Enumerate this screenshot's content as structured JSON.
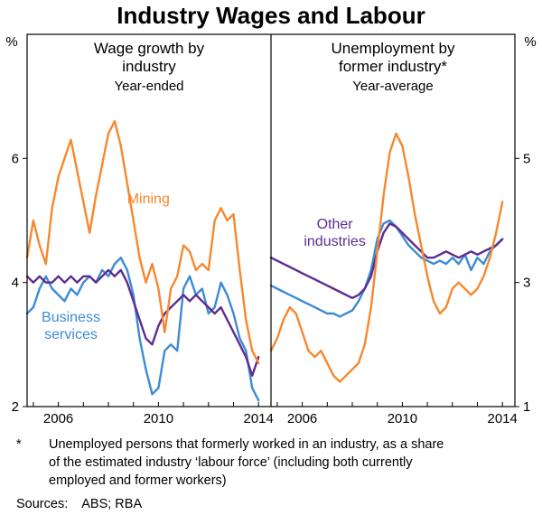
{
  "title": "Industry Wages and Labour",
  "colors": {
    "mining": "#F6882E",
    "business_services": "#3D8BD5",
    "other_industries": "#5C2D91",
    "axis": "#000000"
  },
  "footnote": {
    "marker": "*",
    "text": "Unemployed persons that formerly worked in an industry, as a share\nof the estimated industry ‘labour force’ (including both currently\nemployed and former workers)"
  },
  "sources": {
    "label": "Sources:",
    "value": "ABS; RBA"
  },
  "chart_data": [
    {
      "type": "line",
      "panel": "left",
      "title_lines": [
        "Wage growth by",
        "industry"
      ],
      "subtitle": "Year-ended",
      "unit": "%",
      "axis_side": "left",
      "ylim": [
        2,
        8
      ],
      "yticks": [
        2,
        4,
        6
      ],
      "xlim": [
        2004.75,
        2014.5
      ],
      "xticks_minor": [
        2005,
        2006,
        2007,
        2008,
        2009,
        2010,
        2011,
        2012,
        2013,
        2014
      ],
      "xticks_labeled": [
        2006,
        2010,
        2014
      ],
      "grid": false,
      "x": [
        2004.75,
        2005,
        2005.25,
        2005.5,
        2005.75,
        2006,
        2006.25,
        2006.5,
        2006.75,
        2007,
        2007.25,
        2007.5,
        2007.75,
        2008,
        2008.25,
        2008.5,
        2008.75,
        2009,
        2009.25,
        2009.5,
        2009.75,
        2010,
        2010.25,
        2010.5,
        2010.75,
        2011,
        2011.25,
        2011.5,
        2011.75,
        2012,
        2012.25,
        2012.5,
        2012.75,
        2013,
        2013.25,
        2013.5,
        2013.75,
        2014
      ],
      "series": [
        {
          "name": "Business services",
          "color_key": "business_services",
          "y": [
            3.5,
            3.6,
            3.9,
            4.1,
            3.9,
            3.8,
            3.7,
            3.9,
            3.8,
            4.0,
            4.1,
            4.0,
            4.2,
            4.1,
            4.3,
            4.4,
            4.2,
            3.8,
            3.1,
            2.6,
            2.2,
            2.3,
            2.9,
            3.0,
            2.9,
            3.9,
            4.1,
            3.8,
            3.9,
            3.5,
            3.6,
            4.0,
            3.8,
            3.5,
            3.1,
            2.9,
            2.3,
            2.1
          ],
          "label": {
            "lines": [
              "Business",
              "services"
            ],
            "x": 2006.5,
            "y": 3.3
          }
        },
        {
          "name": "Other industries",
          "color_key": "other_industries",
          "y": [
            4.1,
            4.0,
            4.1,
            4.0,
            4.0,
            4.1,
            4.0,
            4.1,
            4.0,
            4.1,
            4.1,
            4.0,
            4.1,
            4.2,
            4.1,
            4.2,
            4.0,
            3.7,
            3.4,
            3.1,
            3.0,
            3.3,
            3.5,
            3.6,
            3.7,
            3.8,
            3.7,
            3.8,
            3.7,
            3.6,
            3.5,
            3.6,
            3.4,
            3.2,
            3.0,
            2.8,
            2.5,
            2.8
          ]
        },
        {
          "name": "Mining",
          "color_key": "mining",
          "y": [
            4.4,
            5.0,
            4.6,
            4.3,
            5.2,
            5.7,
            6.0,
            6.3,
            5.8,
            5.3,
            4.8,
            5.4,
            5.9,
            6.4,
            6.6,
            6.2,
            5.6,
            5.0,
            4.4,
            4.0,
            4.3,
            3.9,
            3.2,
            3.9,
            4.1,
            4.6,
            4.5,
            4.2,
            4.3,
            4.2,
            5.0,
            5.2,
            5.0,
            5.1,
            4.2,
            3.4,
            2.9,
            2.7
          ],
          "label": {
            "lines": [
              "Mining"
            ],
            "x": 2009.6,
            "y": 5.35
          }
        }
      ]
    },
    {
      "type": "line",
      "panel": "right",
      "title_lines": [
        "Unemployment by",
        "former industry*"
      ],
      "subtitle": "Year-average",
      "unit": "%",
      "axis_side": "right",
      "ylim": [
        1,
        7
      ],
      "yticks": [
        1,
        3,
        5
      ],
      "xlim": [
        2004.75,
        2014.5
      ],
      "xticks_minor": [
        2005,
        2006,
        2007,
        2008,
        2009,
        2010,
        2011,
        2012,
        2013,
        2014
      ],
      "xticks_labeled": [
        2006,
        2010,
        2014
      ],
      "grid": false,
      "x": [
        2004.75,
        2005,
        2005.25,
        2005.5,
        2005.75,
        2006,
        2006.25,
        2006.5,
        2006.75,
        2007,
        2007.25,
        2007.5,
        2007.75,
        2008,
        2008.25,
        2008.5,
        2008.75,
        2009,
        2009.25,
        2009.5,
        2009.75,
        2010,
        2010.25,
        2010.5,
        2010.75,
        2011,
        2011.25,
        2011.5,
        2011.75,
        2012,
        2012.25,
        2012.5,
        2012.75,
        2013,
        2013.25,
        2013.5,
        2013.75,
        2014
      ],
      "series": [
        {
          "name": "Business services",
          "color_key": "business_services",
          "y": [
            2.95,
            2.9,
            2.85,
            2.8,
            2.75,
            2.7,
            2.65,
            2.6,
            2.55,
            2.5,
            2.5,
            2.45,
            2.5,
            2.55,
            2.7,
            2.9,
            3.2,
            3.7,
            3.95,
            4.0,
            3.9,
            3.75,
            3.6,
            3.5,
            3.4,
            3.35,
            3.3,
            3.35,
            3.3,
            3.4,
            3.3,
            3.45,
            3.2,
            3.4,
            3.3,
            3.5,
            3.6,
            3.7
          ]
        },
        {
          "name": "Other industries",
          "color_key": "other_industries",
          "y": [
            3.4,
            3.35,
            3.3,
            3.25,
            3.2,
            3.15,
            3.1,
            3.05,
            3.0,
            2.95,
            2.9,
            2.85,
            2.8,
            2.75,
            2.8,
            2.9,
            3.1,
            3.5,
            3.8,
            3.95,
            3.9,
            3.8,
            3.7,
            3.6,
            3.5,
            3.4,
            3.4,
            3.45,
            3.5,
            3.45,
            3.4,
            3.45,
            3.5,
            3.45,
            3.5,
            3.55,
            3.6,
            3.7
          ],
          "label": {
            "lines": [
              "Other",
              "industries"
            ],
            "x": 2007.3,
            "y": 3.8
          }
        },
        {
          "name": "Mining",
          "color_key": "mining",
          "y": [
            1.9,
            2.1,
            2.4,
            2.6,
            2.5,
            2.2,
            1.9,
            1.8,
            1.9,
            1.7,
            1.5,
            1.4,
            1.5,
            1.6,
            1.7,
            2.0,
            2.6,
            3.5,
            4.4,
            5.1,
            5.4,
            5.2,
            4.7,
            4.1,
            3.6,
            3.1,
            2.7,
            2.5,
            2.6,
            2.9,
            3.0,
            2.9,
            2.8,
            2.9,
            3.1,
            3.4,
            3.8,
            4.3
          ]
        }
      ]
    }
  ]
}
